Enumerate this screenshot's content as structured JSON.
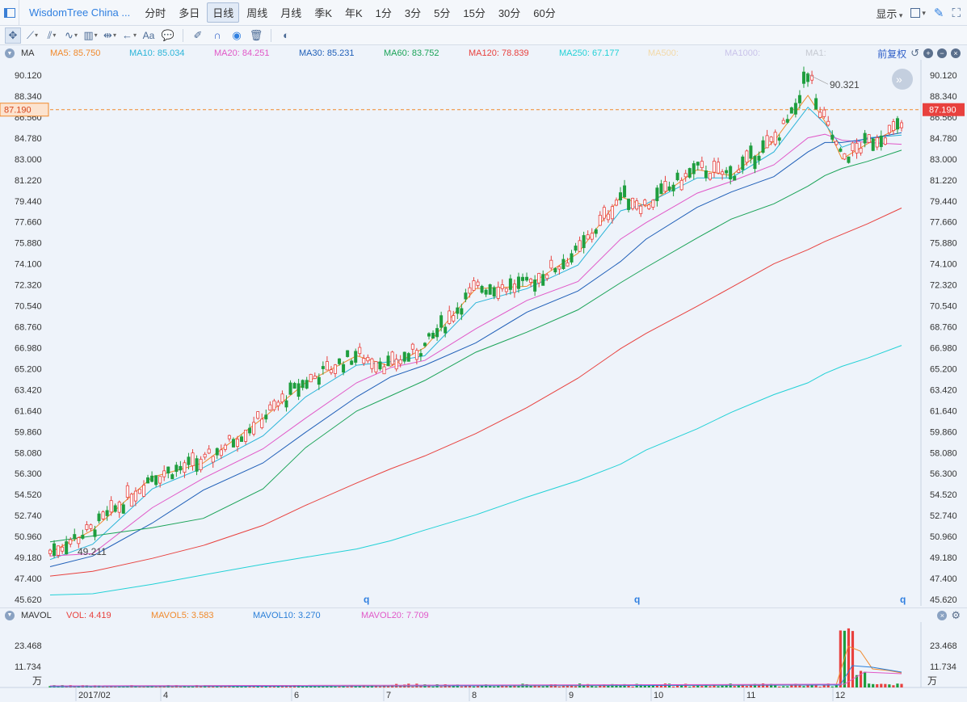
{
  "app": {
    "title": "WisdomTree China ..."
  },
  "periods": [
    "分时",
    "多日",
    "日线",
    "周线",
    "月线",
    "季K",
    "年K",
    "1分",
    "3分",
    "5分",
    "15分",
    "30分",
    "60分"
  ],
  "active_period": "日线",
  "top_right": {
    "display_label": "显示"
  },
  "main_legend": {
    "indicator": "MA",
    "items": [
      {
        "label": "MA5: 85.750",
        "color": "#f0892b"
      },
      {
        "label": "MA10: 85.034",
        "color": "#2ab4d8"
      },
      {
        "label": "MA20: 84.251",
        "color": "#e158c8"
      },
      {
        "label": "MA30: 85.231",
        "color": "#1f5fb8"
      },
      {
        "label": "MA60: 83.752",
        "color": "#1aa357"
      },
      {
        "label": "MA120: 78.839",
        "color": "#e8413e"
      },
      {
        "label": "MA250: 67.177",
        "color": "#22d1d6"
      },
      {
        "label": "MA500:",
        "color": "#f2d9a8"
      },
      {
        "label": "MA1000:",
        "color": "#c9c3ea"
      },
      {
        "label": "MA1:",
        "color": "#c5c9d1"
      }
    ],
    "adjust_label": "前复权"
  },
  "vol_legend": {
    "indicator": "MAVOL",
    "items": [
      {
        "label": "VOL: 4.419",
        "color": "#e8413e"
      },
      {
        "label": "MAVOL5: 3.583",
        "color": "#f0892b"
      },
      {
        "label": "MAVOL10: 3.270",
        "color": "#2a7fd8"
      },
      {
        "label": "MAVOL20: 7.709",
        "color": "#e158c8"
      }
    ]
  },
  "chart_data": {
    "type": "candlestick",
    "y_axis_ticks": [
      "90.120",
      "88.340",
      "86.560",
      "84.780",
      "83.000",
      "81.220",
      "79.440",
      "77.660",
      "75.880",
      "74.100",
      "72.320",
      "70.540",
      "68.760",
      "66.980",
      "65.200",
      "63.420",
      "61.640",
      "59.860",
      "58.080",
      "56.300",
      "54.520",
      "52.740",
      "50.960",
      "49.180",
      "47.400",
      "45.620"
    ],
    "ylim": [
      45.62,
      90.12
    ],
    "current_price": "87.190",
    "annotation_high": "90.321",
    "annotation_low": "49.211",
    "x_tick_labels": [
      "2017/02",
      "4",
      "6",
      "7",
      "8",
      "9",
      "10",
      "11",
      "12"
    ],
    "ma_series": [
      {
        "name": "MA5",
        "color": "#f0892b",
        "points": [
          [
            0,
            49.6
          ],
          [
            0.05,
            51.5
          ],
          [
            0.12,
            56.0
          ],
          [
            0.18,
            57.2
          ],
          [
            0.25,
            61.0
          ],
          [
            0.3,
            64.0
          ],
          [
            0.36,
            66.3
          ],
          [
            0.4,
            65.4
          ],
          [
            0.44,
            67.0
          ],
          [
            0.5,
            72.0
          ],
          [
            0.56,
            72.2
          ],
          [
            0.62,
            75.0
          ],
          [
            0.67,
            79.8
          ],
          [
            0.7,
            79.0
          ],
          [
            0.76,
            82.1
          ],
          [
            0.8,
            81.6
          ],
          [
            0.85,
            84.5
          ],
          [
            0.89,
            88.4
          ],
          [
            0.91,
            86.2
          ],
          [
            0.93,
            83.0
          ],
          [
            0.96,
            84.3
          ],
          [
            1.0,
            85.75
          ]
        ]
      },
      {
        "name": "MA10",
        "color": "#2ab4d8",
        "points": [
          [
            0,
            49.0
          ],
          [
            0.05,
            50.3
          ],
          [
            0.12,
            55.0
          ],
          [
            0.18,
            56.8
          ],
          [
            0.25,
            59.5
          ],
          [
            0.3,
            62.8
          ],
          [
            0.36,
            65.5
          ],
          [
            0.4,
            65.8
          ],
          [
            0.44,
            66.3
          ],
          [
            0.5,
            70.8
          ],
          [
            0.56,
            72.0
          ],
          [
            0.62,
            74.0
          ],
          [
            0.67,
            78.6
          ],
          [
            0.7,
            79.2
          ],
          [
            0.76,
            81.4
          ],
          [
            0.8,
            81.4
          ],
          [
            0.85,
            83.6
          ],
          [
            0.89,
            87.4
          ],
          [
            0.91,
            86.0
          ],
          [
            0.93,
            84.0
          ],
          [
            0.96,
            84.8
          ],
          [
            1.0,
            85.03
          ]
        ]
      },
      {
        "name": "MA20",
        "color": "#e158c8",
        "points": [
          [
            0,
            49.3
          ],
          [
            0.05,
            49.5
          ],
          [
            0.12,
            53.4
          ],
          [
            0.18,
            55.9
          ],
          [
            0.25,
            58.4
          ],
          [
            0.3,
            61.0
          ],
          [
            0.36,
            64.0
          ],
          [
            0.4,
            65.3
          ],
          [
            0.44,
            65.9
          ],
          [
            0.5,
            68.6
          ],
          [
            0.56,
            71.0
          ],
          [
            0.62,
            72.6
          ],
          [
            0.67,
            76.2
          ],
          [
            0.7,
            77.6
          ],
          [
            0.76,
            80.1
          ],
          [
            0.8,
            81.1
          ],
          [
            0.85,
            82.5
          ],
          [
            0.89,
            84.8
          ],
          [
            0.91,
            85.1
          ],
          [
            0.93,
            84.6
          ],
          [
            0.96,
            84.4
          ],
          [
            1.0,
            84.25
          ]
        ]
      },
      {
        "name": "MA30",
        "color": "#1f5fb8",
        "points": [
          [
            0,
            48.4
          ],
          [
            0.05,
            49.3
          ],
          [
            0.12,
            52.1
          ],
          [
            0.18,
            54.9
          ],
          [
            0.25,
            57.2
          ],
          [
            0.3,
            59.8
          ],
          [
            0.36,
            62.8
          ],
          [
            0.4,
            64.5
          ],
          [
            0.44,
            65.5
          ],
          [
            0.5,
            67.4
          ],
          [
            0.56,
            70.0
          ],
          [
            0.62,
            71.8
          ],
          [
            0.67,
            74.3
          ],
          [
            0.7,
            76.2
          ],
          [
            0.76,
            78.9
          ],
          [
            0.8,
            80.2
          ],
          [
            0.85,
            81.5
          ],
          [
            0.89,
            83.6
          ],
          [
            0.91,
            84.4
          ],
          [
            0.93,
            84.4
          ],
          [
            0.96,
            84.7
          ],
          [
            1.0,
            85.23
          ]
        ]
      },
      {
        "name": "MA60",
        "color": "#1aa357",
        "points": [
          [
            0,
            50.5
          ],
          [
            0.05,
            51.0
          ],
          [
            0.12,
            51.7
          ],
          [
            0.18,
            52.5
          ],
          [
            0.25,
            55.0
          ],
          [
            0.3,
            58.5
          ],
          [
            0.36,
            61.6
          ],
          [
            0.4,
            62.9
          ],
          [
            0.44,
            64.2
          ],
          [
            0.5,
            66.6
          ],
          [
            0.56,
            68.3
          ],
          [
            0.62,
            70.2
          ],
          [
            0.67,
            72.5
          ],
          [
            0.7,
            73.8
          ],
          [
            0.76,
            76.3
          ],
          [
            0.8,
            77.9
          ],
          [
            0.85,
            79.2
          ],
          [
            0.89,
            80.7
          ],
          [
            0.91,
            81.6
          ],
          [
            0.93,
            82.2
          ],
          [
            0.96,
            82.8
          ],
          [
            1.0,
            83.75
          ]
        ]
      },
      {
        "name": "MA120",
        "color": "#e8413e",
        "points": [
          [
            0,
            47.6
          ],
          [
            0.05,
            48.0
          ],
          [
            0.12,
            49.1
          ],
          [
            0.18,
            50.2
          ],
          [
            0.25,
            51.9
          ],
          [
            0.3,
            53.6
          ],
          [
            0.36,
            55.5
          ],
          [
            0.4,
            56.7
          ],
          [
            0.44,
            57.8
          ],
          [
            0.5,
            59.7
          ],
          [
            0.56,
            61.9
          ],
          [
            0.62,
            64.4
          ],
          [
            0.67,
            66.9
          ],
          [
            0.7,
            68.2
          ],
          [
            0.76,
            70.5
          ],
          [
            0.8,
            72.1
          ],
          [
            0.85,
            74.1
          ],
          [
            0.89,
            75.3
          ],
          [
            0.91,
            76.0
          ],
          [
            0.93,
            76.6
          ],
          [
            0.96,
            77.5
          ],
          [
            1.0,
            78.84
          ]
        ]
      },
      {
        "name": "MA250",
        "color": "#22d1d6",
        "points": [
          [
            0,
            46.0
          ],
          [
            0.05,
            46.1
          ],
          [
            0.12,
            46.9
          ],
          [
            0.18,
            47.7
          ],
          [
            0.25,
            48.6
          ],
          [
            0.3,
            49.2
          ],
          [
            0.36,
            49.9
          ],
          [
            0.4,
            50.6
          ],
          [
            0.44,
            51.5
          ],
          [
            0.5,
            52.8
          ],
          [
            0.56,
            54.3
          ],
          [
            0.62,
            55.7
          ],
          [
            0.67,
            57.1
          ],
          [
            0.7,
            58.3
          ],
          [
            0.76,
            60.1
          ],
          [
            0.8,
            61.5
          ],
          [
            0.85,
            63.0
          ],
          [
            0.89,
            64.0
          ],
          [
            0.91,
            64.8
          ],
          [
            0.93,
            65.4
          ],
          [
            0.96,
            66.1
          ],
          [
            1.0,
            67.18
          ]
        ]
      }
    ]
  },
  "vol_axis": {
    "ticks": [
      "23.468",
      "11.734"
    ],
    "unit": "万"
  }
}
